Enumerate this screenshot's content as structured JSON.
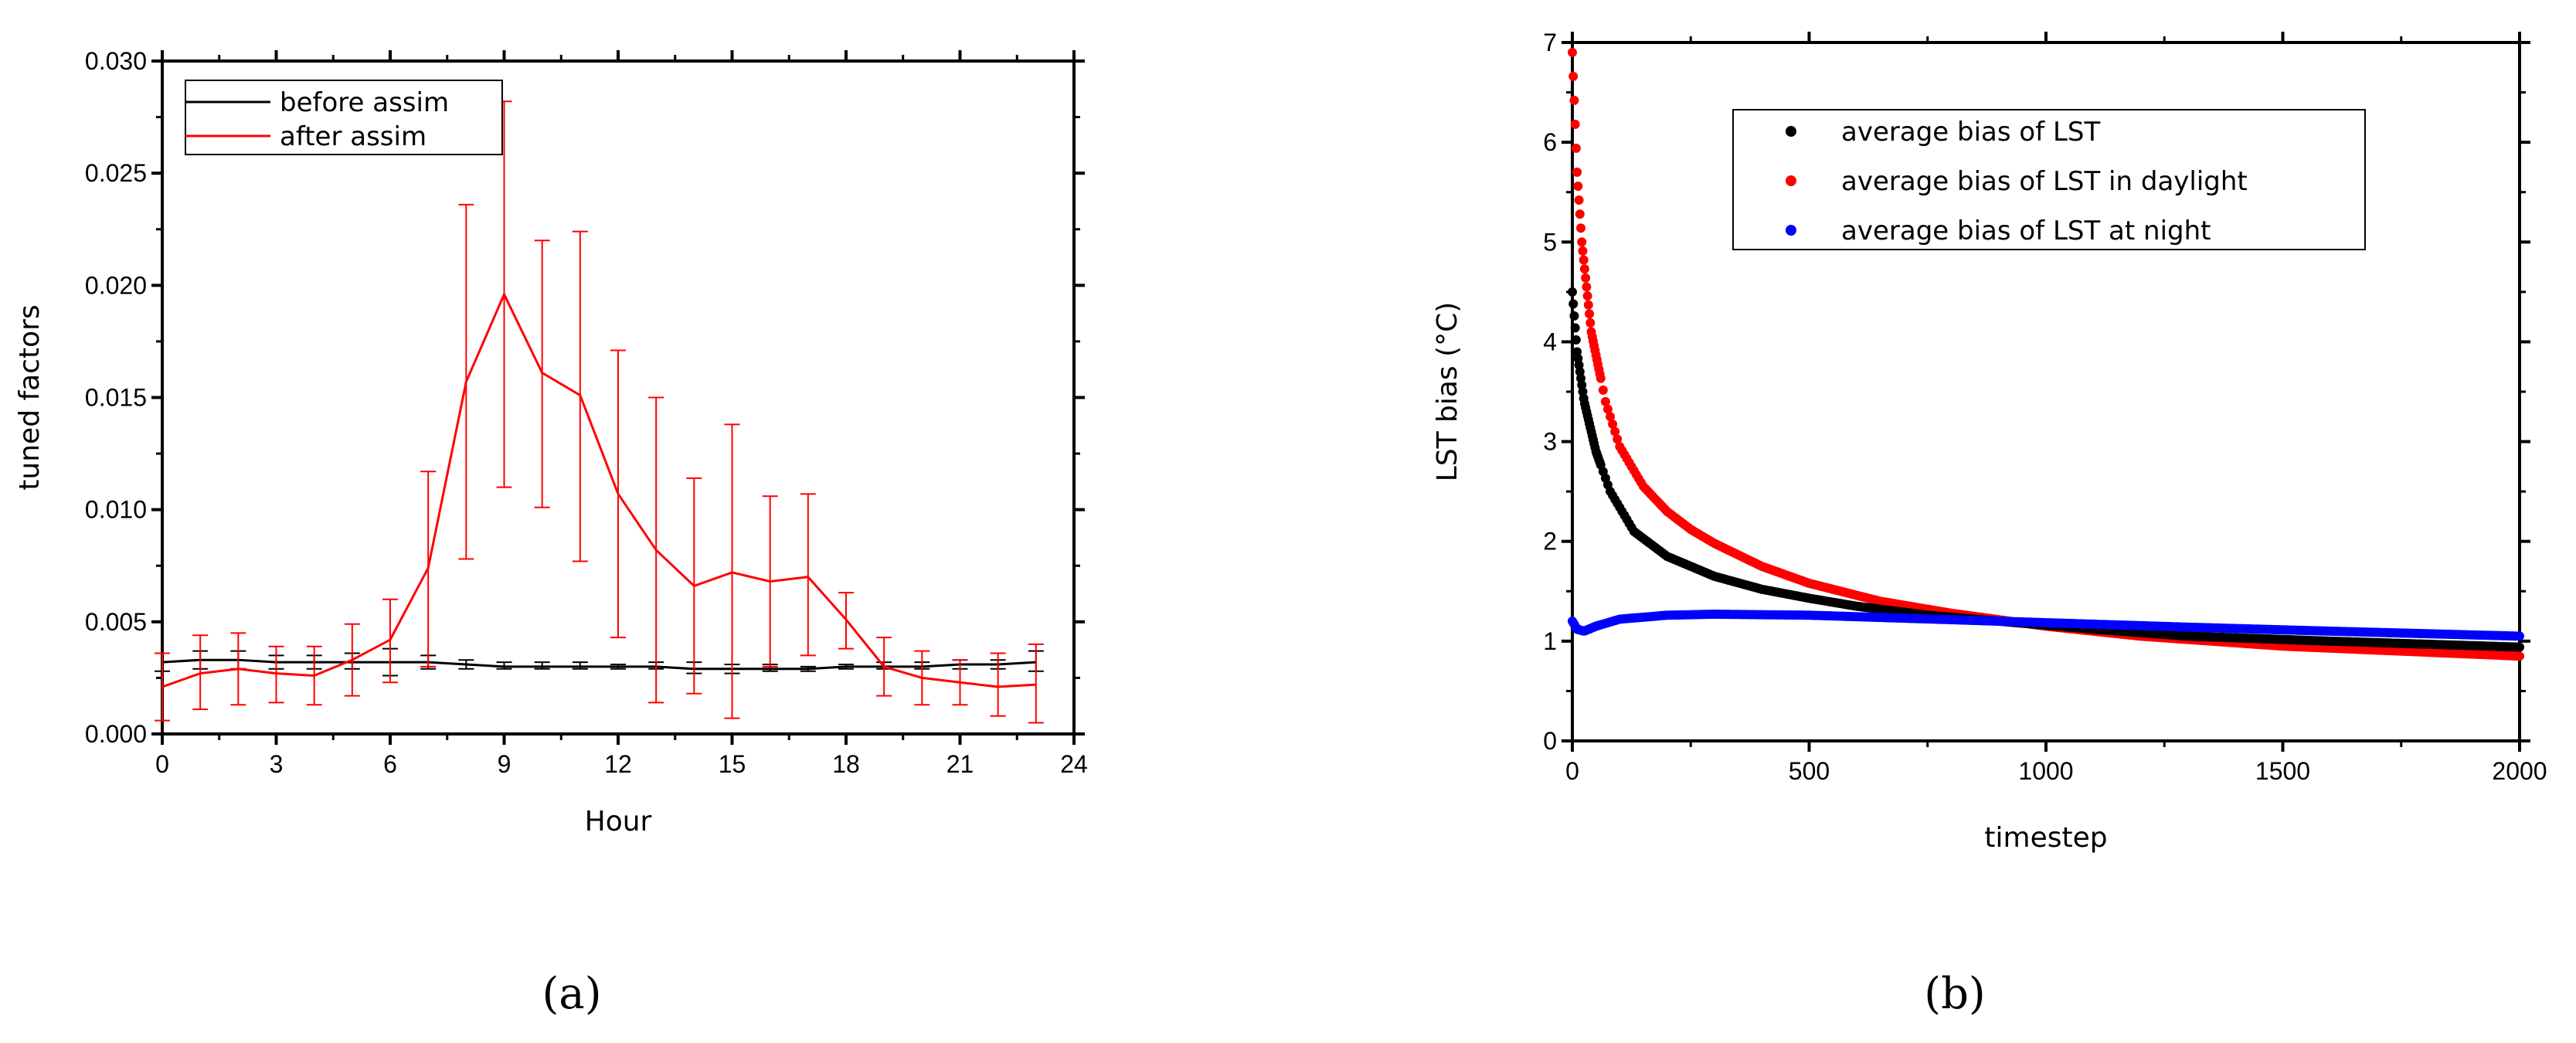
{
  "chart_data": [
    {
      "type": "line",
      "panel_label": "(a)",
      "xlabel": "Hour",
      "ylabel": "tuned factors",
      "xlim": [
        0,
        24
      ],
      "ylim": [
        0,
        0.03
      ],
      "xticks": [
        0,
        3,
        6,
        9,
        12,
        15,
        18,
        21,
        24
      ],
      "yticks": [
        "0.000",
        "0.005",
        "0.010",
        "0.015",
        "0.020",
        "0.025",
        "0.030"
      ],
      "grid": false,
      "legend_placement": "top-left",
      "x": [
        0,
        1,
        2,
        3,
        4,
        5,
        6,
        7,
        8,
        9,
        10,
        11,
        12,
        13,
        14,
        15,
        16,
        17,
        18,
        19,
        20,
        21,
        22,
        23
      ],
      "series": [
        {
          "name": "before assim",
          "color": "#000000",
          "values": [
            0.0032,
            0.0033,
            0.0033,
            0.0032,
            0.0032,
            0.0032,
            0.0032,
            0.0032,
            0.0031,
            0.003,
            0.003,
            0.003,
            0.003,
            0.003,
            0.0029,
            0.0029,
            0.0029,
            0.0029,
            0.003,
            0.003,
            0.003,
            0.0031,
            0.0031,
            0.0032
          ],
          "err_low": [
            0.0028,
            0.0029,
            0.0029,
            0.0029,
            0.0029,
            0.0029,
            0.0026,
            0.0029,
            0.0029,
            0.0029,
            0.0029,
            0.0029,
            0.0029,
            0.0029,
            0.0027,
            0.0027,
            0.0028,
            0.0028,
            0.0029,
            0.0029,
            0.0029,
            0.0029,
            0.0029,
            0.0028
          ],
          "err_high": [
            0.0036,
            0.0037,
            0.0037,
            0.0035,
            0.0035,
            0.0036,
            0.0038,
            0.0035,
            0.0033,
            0.0032,
            0.0032,
            0.0032,
            0.0031,
            0.0032,
            0.0032,
            0.0031,
            0.0031,
            0.003,
            0.0031,
            0.0032,
            0.0032,
            0.0033,
            0.0033,
            0.0037
          ]
        },
        {
          "name": "after assim",
          "color": "#ff0000",
          "values": [
            0.0021,
            0.0027,
            0.0029,
            0.0027,
            0.0026,
            0.0033,
            0.0042,
            0.0074,
            0.0157,
            0.0196,
            0.0161,
            0.0151,
            0.0107,
            0.0082,
            0.0066,
            0.0072,
            0.0068,
            0.007,
            0.0051,
            0.003,
            0.0025,
            0.0023,
            0.0021,
            0.0022
          ],
          "err_low": [
            0.0006,
            0.0011,
            0.0013,
            0.0014,
            0.0013,
            0.0017,
            0.0023,
            0.003,
            0.0078,
            0.011,
            0.0101,
            0.0077,
            0.0043,
            0.0014,
            0.0018,
            0.0007,
            0.003,
            0.0035,
            0.0038,
            0.0017,
            0.0013,
            0.0013,
            0.0008,
            0.0005
          ],
          "err_high": [
            0.0036,
            0.0044,
            0.0045,
            0.0039,
            0.0039,
            0.0049,
            0.006,
            0.0117,
            0.0236,
            0.0282,
            0.022,
            0.0224,
            0.0171,
            0.015,
            0.0114,
            0.0138,
            0.0106,
            0.0107,
            0.0063,
            0.0043,
            0.0037,
            0.0033,
            0.0036,
            0.004
          ]
        }
      ]
    },
    {
      "type": "scatter",
      "panel_label": "(b)",
      "xlabel": "timestep",
      "ylabel": "LST bias (°C)",
      "xlim": [
        0,
        2000
      ],
      "ylim": [
        0,
        7
      ],
      "xticks": [
        0,
        500,
        1000,
        1500,
        2000
      ],
      "yticks": [
        0,
        1,
        2,
        3,
        4,
        5,
        6,
        7
      ],
      "grid": false,
      "legend_placement": "top-center",
      "series": [
        {
          "name": "average bias of LST",
          "color": "#000000",
          "x": [
            0,
            10,
            25,
            50,
            80,
            130,
            200,
            300,
            400,
            500,
            600,
            750,
            900,
            1100,
            1300,
            1600,
            2000
          ],
          "values": [
            4.5,
            3.9,
            3.4,
            2.9,
            2.5,
            2.1,
            1.85,
            1.65,
            1.52,
            1.43,
            1.35,
            1.26,
            1.2,
            1.12,
            1.05,
            1.0,
            0.94
          ]
        },
        {
          "name": "average bias of LST in daylight",
          "color": "#ff0000",
          "x": [
            0,
            5,
            10,
            20,
            40,
            70,
            100,
            150,
            200,
            250,
            300,
            400,
            500,
            650,
            800,
            1000,
            1200,
            1500,
            2000
          ],
          "values": [
            6.9,
            6.3,
            5.7,
            5.0,
            4.1,
            3.4,
            2.95,
            2.55,
            2.3,
            2.12,
            1.98,
            1.75,
            1.58,
            1.4,
            1.28,
            1.15,
            1.05,
            0.95,
            0.85
          ]
        },
        {
          "name": "average bias of LST at night",
          "color": "#0000ff",
          "x": [
            0,
            10,
            25,
            50,
            100,
            200,
            300,
            500,
            700,
            900,
            1100,
            1300,
            1600,
            2000
          ],
          "values": [
            1.2,
            1.12,
            1.1,
            1.15,
            1.22,
            1.26,
            1.27,
            1.26,
            1.23,
            1.2,
            1.17,
            1.14,
            1.1,
            1.05
          ]
        }
      ]
    }
  ]
}
